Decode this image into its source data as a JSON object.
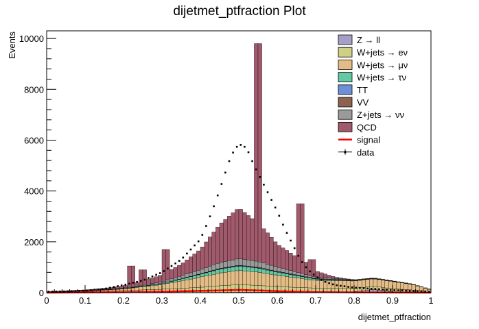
{
  "chart_data": {
    "type": "bar",
    "stacked": true,
    "title": "dijetmet_ptfraction Plot",
    "xlabel": "dijetmet_ptfraction",
    "ylabel": "Events",
    "xlim": [
      0,
      1
    ],
    "ylim": [
      0,
      10300
    ],
    "grid": false,
    "legend_position": "top-right",
    "x_ticks": [
      "0",
      "0.1",
      "0.2",
      "0.3",
      "0.4",
      "0.5",
      "0.6",
      "0.7",
      "0.8",
      "0.9",
      "1"
    ],
    "y_ticks": [
      "0",
      "2000",
      "4000",
      "6000",
      "8000",
      "10000"
    ],
    "bin_width": 0.01,
    "legend": [
      {
        "label": "Z → ll",
        "color": "#a69fc5",
        "kind": "box"
      },
      {
        "label": "W+jets → eν",
        "color": "#cfcf87",
        "kind": "box"
      },
      {
        "label": "W+jets → μν",
        "color": "#e4bc85",
        "kind": "box"
      },
      {
        "label": "W+jets → τν",
        "color": "#63c9a2",
        "kind": "box"
      },
      {
        "label": "TT",
        "color": "#6e8fd6",
        "kind": "box"
      },
      {
        "label": "VV",
        "color": "#8e6250",
        "kind": "box"
      },
      {
        "label": "Z+jets → νν",
        "color": "#9a9a9a",
        "kind": "box"
      },
      {
        "label": "QCD",
        "color": "#a15a6c",
        "kind": "box"
      },
      {
        "label": "signal",
        "color": "#ff0000",
        "kind": "line"
      },
      {
        "label": "data",
        "color": "#000000",
        "kind": "marker"
      }
    ],
    "stack_series": [
      {
        "name": "Z → ll",
        "color": "#a69fc5",
        "points": [
          [
            0.0,
            0
          ],
          [
            0.3,
            5
          ],
          [
            0.5,
            15
          ],
          [
            0.7,
            20
          ],
          [
            0.8,
            40
          ],
          [
            0.85,
            120
          ],
          [
            0.87,
            90
          ],
          [
            0.9,
            40
          ],
          [
            1.0,
            15
          ]
        ]
      },
      {
        "name": "W+jets → eν",
        "color": "#cfcf87",
        "points": [
          [
            0.0,
            20
          ],
          [
            0.1,
            40
          ],
          [
            0.2,
            80
          ],
          [
            0.3,
            130
          ],
          [
            0.4,
            200
          ],
          [
            0.45,
            260
          ],
          [
            0.5,
            300
          ],
          [
            0.55,
            270
          ],
          [
            0.6,
            220
          ],
          [
            0.7,
            160
          ],
          [
            0.8,
            130
          ],
          [
            0.9,
            120
          ],
          [
            1.0,
            40
          ]
        ]
      },
      {
        "name": "W+jets → μν",
        "color": "#e4bc85",
        "points": [
          [
            0.0,
            10
          ],
          [
            0.1,
            25
          ],
          [
            0.2,
            60
          ],
          [
            0.3,
            180
          ],
          [
            0.4,
            400
          ],
          [
            0.45,
            500
          ],
          [
            0.5,
            560
          ],
          [
            0.55,
            520
          ],
          [
            0.6,
            450
          ],
          [
            0.7,
            300
          ],
          [
            0.8,
            290
          ],
          [
            0.85,
            300
          ],
          [
            0.9,
            280
          ],
          [
            0.95,
            220
          ],
          [
            1.0,
            60
          ]
        ]
      },
      {
        "name": "W+jets → τν",
        "color": "#63c9a2",
        "points": [
          [
            0.0,
            2
          ],
          [
            0.2,
            10
          ],
          [
            0.3,
            40
          ],
          [
            0.4,
            110
          ],
          [
            0.45,
            150
          ],
          [
            0.5,
            170
          ],
          [
            0.55,
            160
          ],
          [
            0.6,
            120
          ],
          [
            0.7,
            50
          ],
          [
            0.8,
            15
          ],
          [
            1.0,
            5
          ]
        ]
      },
      {
        "name": "TT",
        "color": "#6e8fd6",
        "points": [
          [
            0.0,
            0
          ],
          [
            0.3,
            5
          ],
          [
            0.5,
            20
          ],
          [
            0.6,
            20
          ],
          [
            0.8,
            10
          ],
          [
            1.0,
            0
          ]
        ]
      },
      {
        "name": "VV",
        "color": "#8e6250",
        "points": [
          [
            0.0,
            0
          ],
          [
            0.3,
            5
          ],
          [
            0.5,
            15
          ],
          [
            0.7,
            10
          ],
          [
            1.0,
            0
          ]
        ]
      },
      {
        "name": "Z+jets → νν",
        "color": "#9a9a9a",
        "points": [
          [
            0.0,
            5
          ],
          [
            0.2,
            20
          ],
          [
            0.3,
            60
          ],
          [
            0.4,
            160
          ],
          [
            0.45,
            230
          ],
          [
            0.5,
            260
          ],
          [
            0.55,
            230
          ],
          [
            0.6,
            170
          ],
          [
            0.7,
            50
          ],
          [
            0.8,
            15
          ],
          [
            1.0,
            5
          ]
        ]
      },
      {
        "name": "QCD",
        "color": "#a15a6c",
        "spikes": [
          [
            0.22,
            1050
          ],
          [
            0.25,
            900
          ],
          [
            0.31,
            1700
          ],
          [
            0.55,
            9800
          ],
          [
            0.58,
            1700
          ],
          [
            0.63,
            1500
          ],
          [
            0.66,
            3500
          ],
          [
            0.67,
            1200
          ],
          [
            0.69,
            1300
          ]
        ],
        "points": [
          [
            0.0,
            0
          ],
          [
            0.1,
            20
          ],
          [
            0.15,
            40
          ],
          [
            0.2,
            80
          ],
          [
            0.25,
            150
          ],
          [
            0.3,
            280
          ],
          [
            0.35,
            450
          ],
          [
            0.4,
            800
          ],
          [
            0.45,
            1500
          ],
          [
            0.5,
            2000
          ],
          [
            0.53,
            1700
          ],
          [
            0.57,
            1300
          ],
          [
            0.6,
            900
          ],
          [
            0.65,
            600
          ],
          [
            0.7,
            250
          ],
          [
            0.75,
            60
          ],
          [
            0.8,
            0
          ],
          [
            1.0,
            0
          ]
        ]
      }
    ],
    "signal": {
      "name": "signal",
      "color": "#ff0000",
      "points": [
        [
          0.0,
          0
        ],
        [
          0.2,
          15
        ],
        [
          0.3,
          40
        ],
        [
          0.4,
          70
        ],
        [
          0.45,
          90
        ],
        [
          0.5,
          110
        ],
        [
          0.55,
          90
        ],
        [
          0.6,
          60
        ],
        [
          0.7,
          25
        ],
        [
          0.8,
          10
        ],
        [
          1.0,
          0
        ]
      ]
    },
    "data": {
      "name": "data",
      "points": [
        [
          0.0,
          40
        ],
        [
          0.05,
          50
        ],
        [
          0.1,
          80
        ],
        [
          0.15,
          150
        ],
        [
          0.2,
          300
        ],
        [
          0.25,
          480
        ],
        [
          0.3,
          800
        ],
        [
          0.35,
          1300
        ],
        [
          0.4,
          2100
        ],
        [
          0.42,
          2800
        ],
        [
          0.44,
          3600
        ],
        [
          0.46,
          4500
        ],
        [
          0.48,
          5400
        ],
        [
          0.5,
          5850
        ],
        [
          0.52,
          5700
        ],
        [
          0.54,
          5000
        ],
        [
          0.56,
          4400
        ],
        [
          0.58,
          3800
        ],
        [
          0.6,
          3200
        ],
        [
          0.62,
          2500
        ],
        [
          0.64,
          1900
        ],
        [
          0.66,
          1300
        ],
        [
          0.68,
          900
        ],
        [
          0.7,
          650
        ],
        [
          0.72,
          450
        ],
        [
          0.75,
          300
        ],
        [
          0.8,
          200
        ],
        [
          0.85,
          150
        ],
        [
          0.9,
          100
        ],
        [
          0.95,
          70
        ],
        [
          1.0,
          30
        ]
      ]
    }
  }
}
